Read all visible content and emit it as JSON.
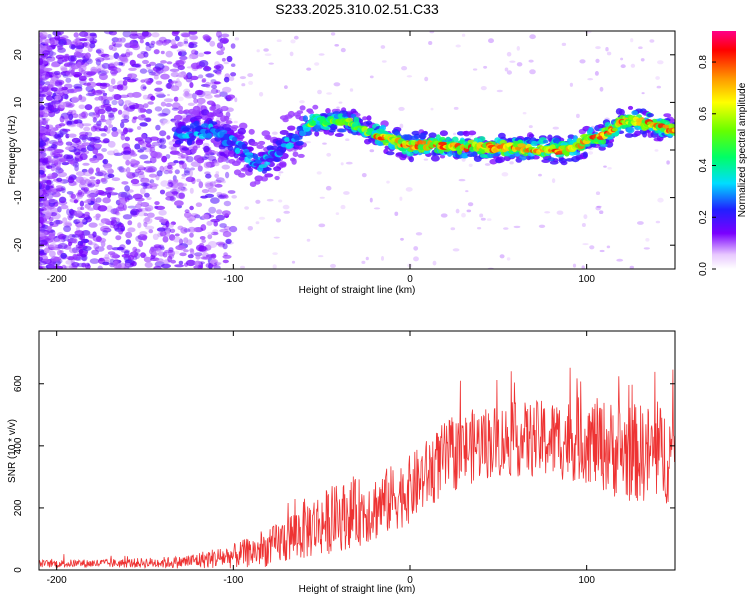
{
  "title": "S233.2025.310.02.51.C33",
  "chart_data": [
    {
      "type": "heatmap",
      "name": "spectrogram",
      "xlabel": "Height of straight line (km)",
      "ylabel": "Frequency (Hz)",
      "xlim": [
        -210,
        150
      ],
      "ylim": [
        -25,
        25
      ],
      "xticks": [
        "-200",
        "-100",
        "0",
        "100"
      ],
      "yticks": [
        "-20",
        "-10",
        "0",
        "10",
        "20"
      ],
      "colorbar": {
        "label": "Normalized spectral amplitude",
        "range": [
          0,
          0.92
        ],
        "ticks": [
          "0.0",
          "0.2",
          "0.4",
          "0.6",
          "0.8"
        ]
      },
      "ridge": {
        "x": [
          -130,
          -110,
          -95,
          -85,
          -75,
          -65,
          -55,
          -45,
          -35,
          -25,
          -10,
          0,
          20,
          40,
          60,
          80,
          90,
          100,
          110,
          120,
          130,
          150
        ],
        "y": [
          4,
          4,
          0,
          -3,
          0,
          3,
          6,
          6,
          6,
          4,
          2,
          1,
          1,
          0.5,
          0.5,
          0,
          0,
          2,
          3,
          6,
          6,
          4
        ]
      }
    },
    {
      "type": "line",
      "name": "snr",
      "xlabel": "Height of straight line (km)",
      "ylabel": "SNR (10 * v/v)",
      "xlim": [
        -210,
        150
      ],
      "ylim": [
        0,
        770
      ],
      "xticks": [
        "-200",
        "-100",
        "0",
        "100"
      ],
      "yticks": [
        "0",
        "200",
        "400",
        "600"
      ],
      "color": "#ee3333",
      "envelope": {
        "x": [
          -210,
          -160,
          -130,
          -100,
          -80,
          -60,
          -40,
          -20,
          0,
          20,
          40,
          60,
          80,
          100,
          120,
          150
        ],
        "mean": [
          20,
          22,
          25,
          45,
          70,
          130,
          170,
          200,
          260,
          360,
          410,
          420,
          420,
          420,
          380,
          370
        ],
        "amplitude": [
          12,
          15,
          20,
          40,
          60,
          100,
          110,
          110,
          110,
          120,
          120,
          120,
          130,
          140,
          160,
          160
        ]
      }
    }
  ]
}
